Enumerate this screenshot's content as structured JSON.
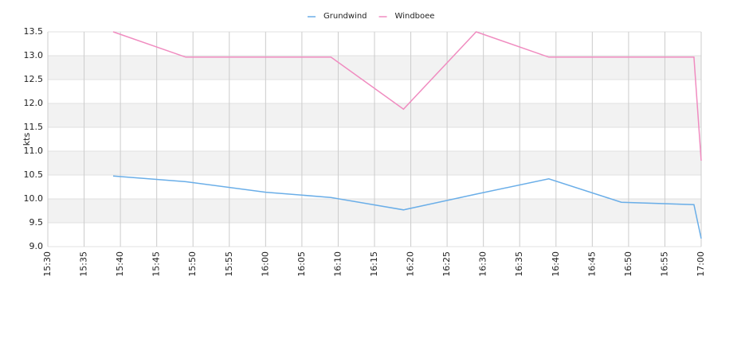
{
  "chart_data": {
    "type": "line",
    "y_label": "kts",
    "x": [
      "15:39",
      "15:49",
      "16:00",
      "16:09",
      "16:19",
      "16:29",
      "16:39",
      "16:49",
      "16:59",
      "17:00"
    ],
    "series": [
      {
        "name": "Grundwind",
        "color": "#6aaee8",
        "values": [
          10.48,
          10.36,
          10.14,
          10.03,
          9.77,
          10.1,
          10.42,
          9.93,
          9.88,
          9.17
        ]
      },
      {
        "name": "Windboee",
        "color": "#f08cc0",
        "values": [
          13.5,
          12.97,
          12.97,
          12.97,
          11.88,
          13.5,
          12.97,
          12.97,
          12.97,
          10.8
        ]
      }
    ],
    "xlim": [
      "15:30",
      "17:00"
    ],
    "xticks": [
      "15:30",
      "15:35",
      "15:40",
      "15:45",
      "15:50",
      "15:55",
      "16:00",
      "16:05",
      "16:10",
      "16:15",
      "16:20",
      "16:25",
      "16:30",
      "16:35",
      "16:40",
      "16:45",
      "16:50",
      "16:55",
      "17:00"
    ],
    "ylim": [
      9,
      13.5
    ],
    "yticks": [
      {
        "value": 9,
        "label": "9.0"
      },
      9.5,
      {
        "value": 10,
        "label": "10.0"
      },
      10.5,
      {
        "value": 11,
        "label": "11.0"
      },
      11.5,
      {
        "value": 12,
        "label": "12.0"
      },
      12.5,
      {
        "value": 13,
        "label": "13.0"
      },
      13.5
    ],
    "grid": true,
    "legend": "top"
  }
}
